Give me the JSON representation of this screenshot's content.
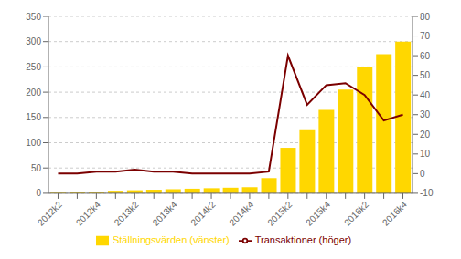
{
  "chart_data": {
    "type": "bar",
    "categories": [
      "2012k2",
      null,
      "2012k4",
      null,
      "2013k2",
      null,
      "2013k4",
      null,
      "2014k2",
      null,
      "2014k4",
      null,
      "2015k2",
      null,
      "2015k4",
      null,
      "2016k2",
      null,
      "2016k4"
    ],
    "series": [
      {
        "name": "Ställningsvärden (vänster)",
        "type": "bar",
        "color": "#FFD700",
        "values": [
          1,
          2,
          3,
          5,
          6,
          7,
          8,
          9,
          10,
          11,
          12,
          30,
          90,
          125,
          165,
          205,
          250,
          275,
          300
        ]
      },
      {
        "name": "Transaktioner (höger)",
        "type": "line",
        "color": "#7B0000",
        "axis": "y2",
        "values": [
          0,
          0,
          1,
          1,
          2,
          1,
          1,
          0,
          0,
          0,
          0,
          1,
          60,
          35,
          45,
          46,
          40,
          27,
          30
        ]
      }
    ],
    "ylim": [
      0,
      350
    ],
    "yticks": [
      0,
      50,
      100,
      150,
      200,
      250,
      300,
      350
    ],
    "y2lim": [
      -10,
      80
    ],
    "y2ticks": [
      -10,
      0,
      10,
      20,
      30,
      40,
      50,
      60,
      70,
      80
    ],
    "grid": true,
    "legend": "bottom"
  }
}
